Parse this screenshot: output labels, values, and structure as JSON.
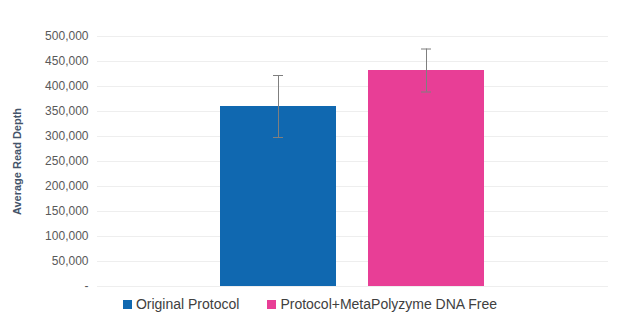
{
  "chart_data": {
    "type": "bar",
    "y_label": "Average Read Depth",
    "categories": [
      null
    ],
    "series": [
      {
        "name": "Original Protocol",
        "color": "#1068b0",
        "values": [
          360000
        ],
        "errors": [
          62000
        ]
      },
      {
        "name": "Protocol+MetaPolyzyme DNA Free",
        "color": "#e83e96",
        "values": [
          432000
        ],
        "errors": [
          43000
        ]
      }
    ],
    "ylim": [
      0,
      500000
    ],
    "yticks": [
      {
        "value": 0,
        "label": "-"
      },
      {
        "value": 50000,
        "label": "50,000"
      },
      {
        "value": 100000,
        "label": "100,000"
      },
      {
        "value": 150000,
        "label": "150,000"
      },
      {
        "value": 200000,
        "label": "200,000"
      },
      {
        "value": 250000,
        "label": "250,000"
      },
      {
        "value": 300000,
        "label": "300,000"
      },
      {
        "value": 350000,
        "label": "350,000"
      },
      {
        "value": 400000,
        "label": "400,000"
      },
      {
        "value": 450000,
        "label": "450,000"
      },
      {
        "value": 500000,
        "label": "500,000"
      }
    ],
    "grid": true,
    "legend": "bottom"
  }
}
